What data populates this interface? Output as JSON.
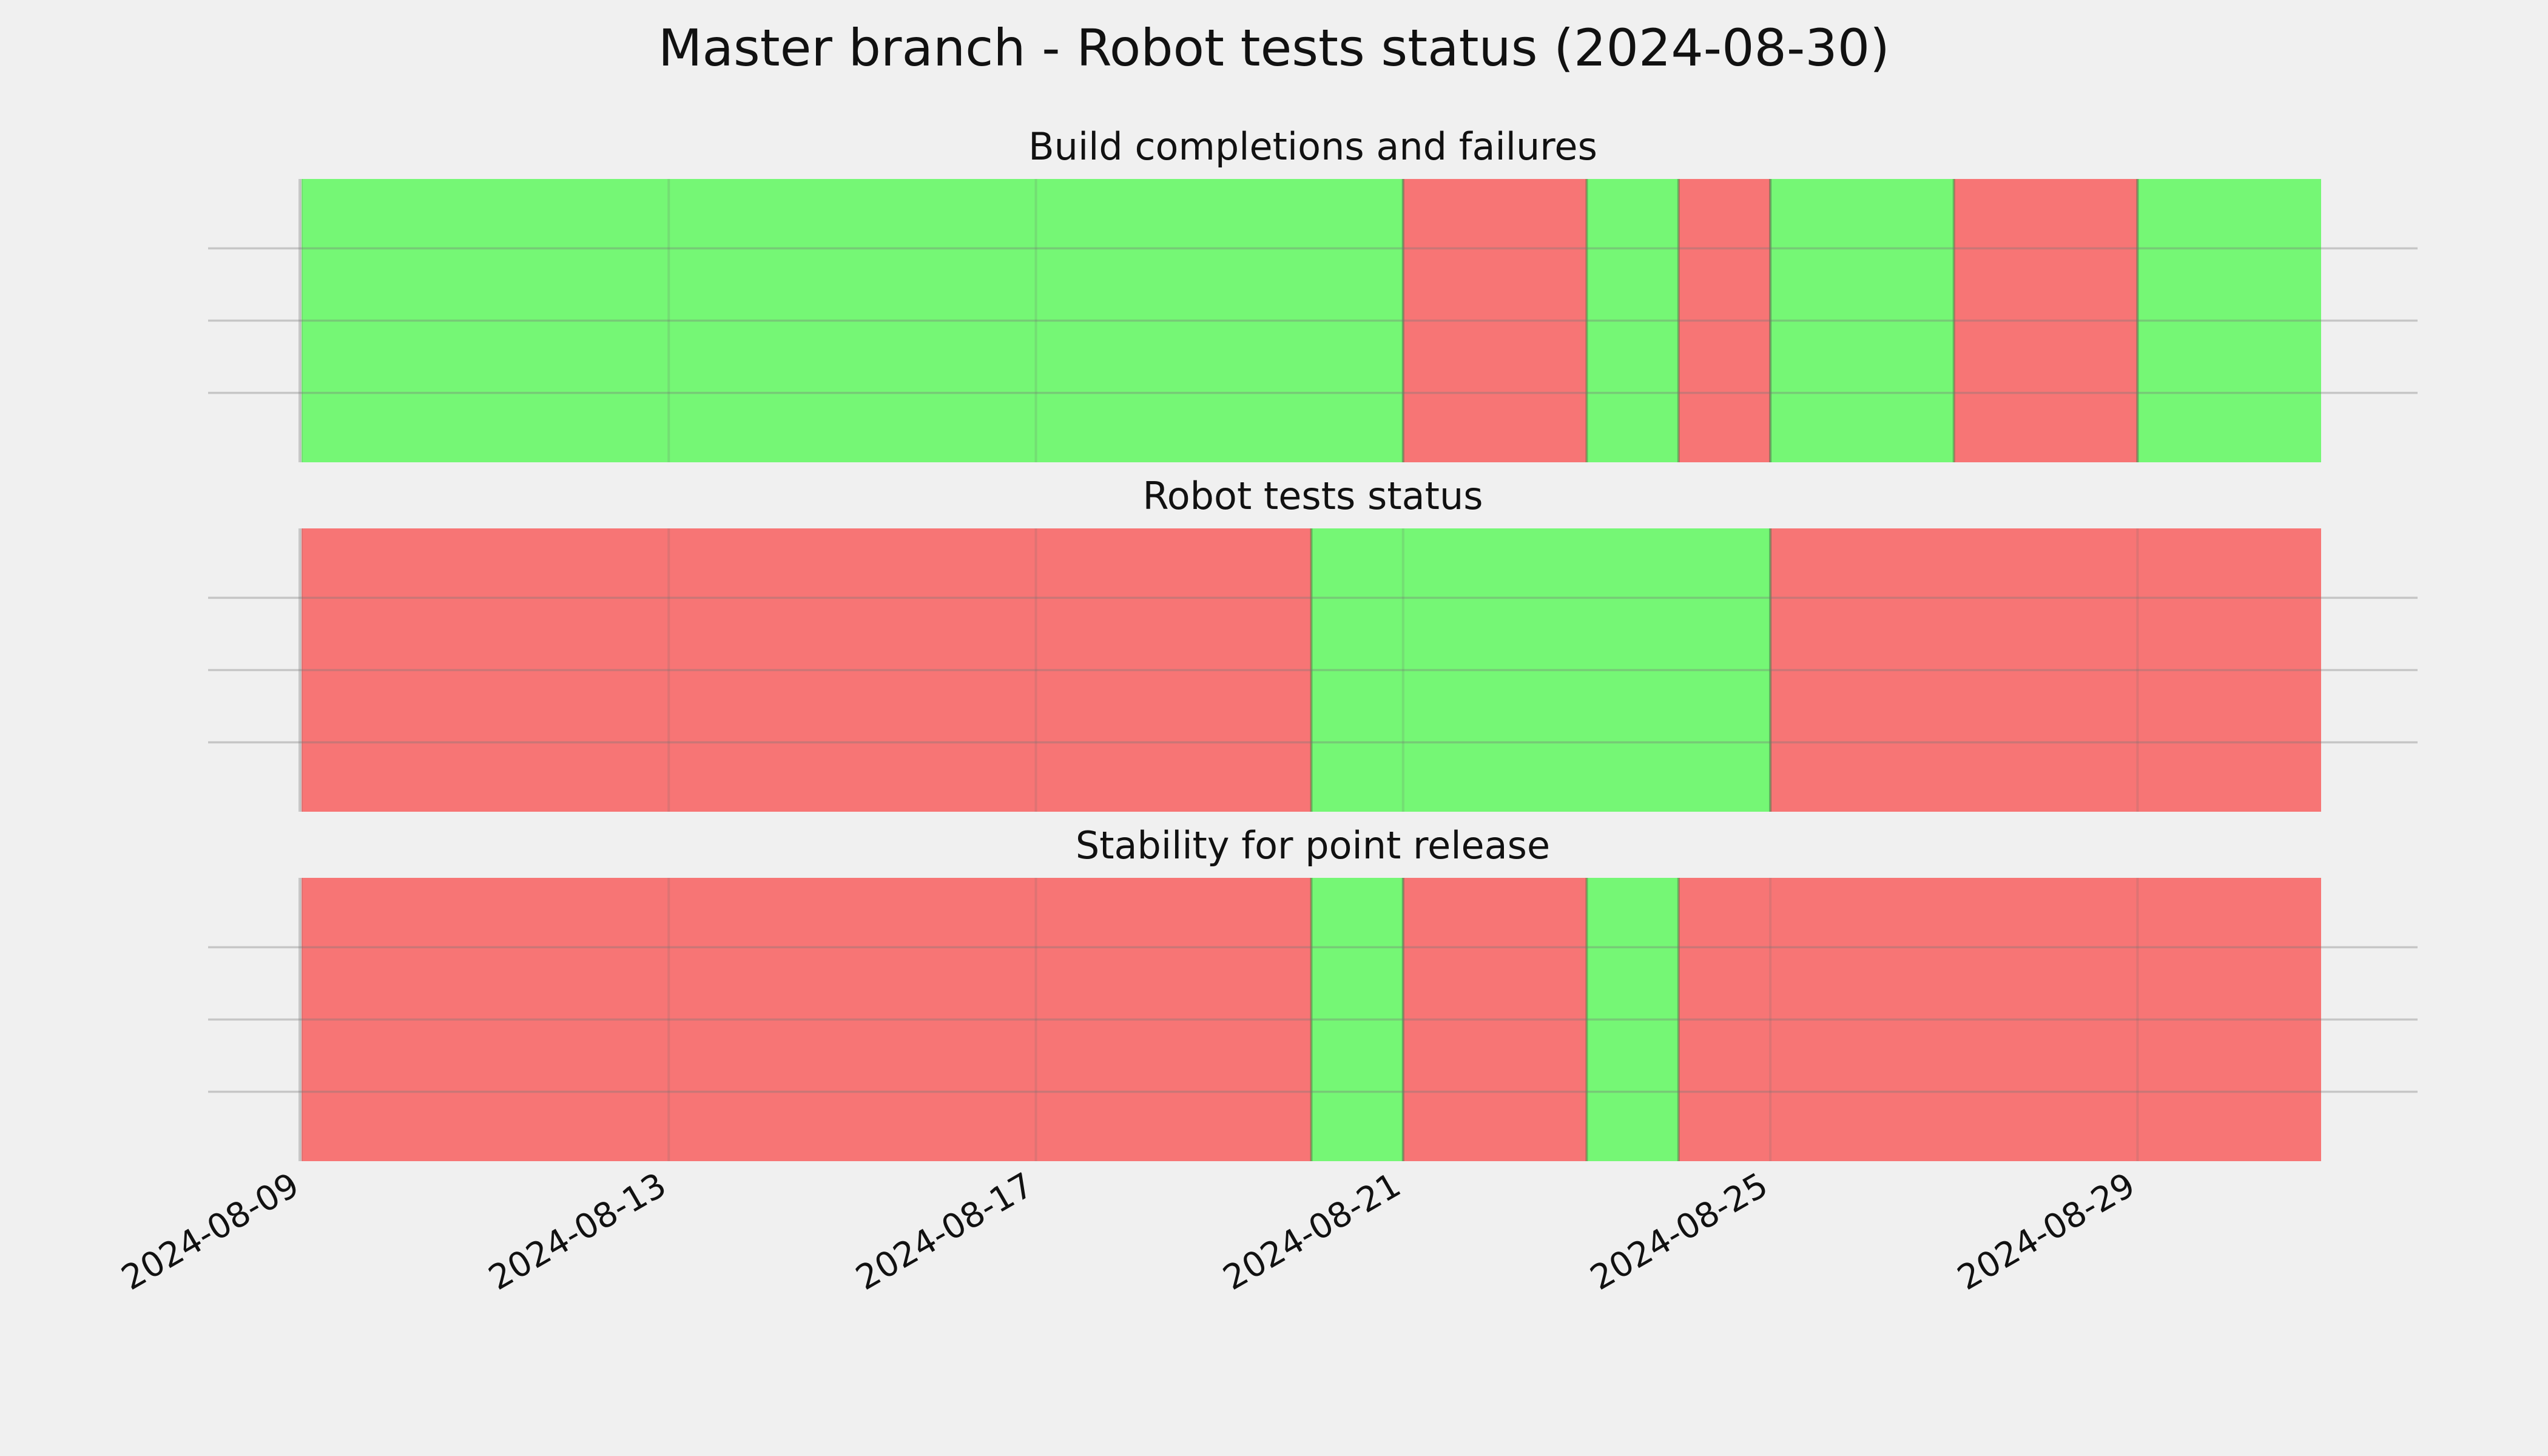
{
  "chart_data": {
    "type": "timeline",
    "title": "Master branch - Robot tests status (2024-08-30)",
    "x_axis": {
      "type": "date",
      "range": [
        "2024-08-09",
        "2024-08-31"
      ],
      "ticks": [
        "2024-08-09",
        "2024-08-13",
        "2024-08-17",
        "2024-08-21",
        "2024-08-25",
        "2024-08-29"
      ]
    },
    "colors": {
      "pass": "#75f775",
      "fail": "#f77575",
      "background": "#f0f0f0"
    },
    "grid": true,
    "panels": [
      {
        "title": "Build completions and failures",
        "segments": [
          {
            "start": "2024-08-09",
            "end": "2024-08-21",
            "status": "pass"
          },
          {
            "start": "2024-08-21",
            "end": "2024-08-23",
            "status": "fail"
          },
          {
            "start": "2024-08-23",
            "end": "2024-08-24",
            "status": "pass"
          },
          {
            "start": "2024-08-24",
            "end": "2024-08-25",
            "status": "fail"
          },
          {
            "start": "2024-08-25",
            "end": "2024-08-27",
            "status": "pass"
          },
          {
            "start": "2024-08-27",
            "end": "2024-08-29",
            "status": "fail"
          },
          {
            "start": "2024-08-29",
            "end": "2024-08-31",
            "status": "pass"
          }
        ]
      },
      {
        "title": "Robot tests status",
        "segments": [
          {
            "start": "2024-08-09",
            "end": "2024-08-20",
            "status": "fail"
          },
          {
            "start": "2024-08-20",
            "end": "2024-08-25",
            "status": "pass"
          },
          {
            "start": "2024-08-25",
            "end": "2024-08-31",
            "status": "fail"
          }
        ]
      },
      {
        "title": "Stability for point release",
        "segments": [
          {
            "start": "2024-08-09",
            "end": "2024-08-20",
            "status": "fail"
          },
          {
            "start": "2024-08-20",
            "end": "2024-08-21",
            "status": "pass"
          },
          {
            "start": "2024-08-21",
            "end": "2024-08-23",
            "status": "fail"
          },
          {
            "start": "2024-08-23",
            "end": "2024-08-24",
            "status": "pass"
          },
          {
            "start": "2024-08-24",
            "end": "2024-08-31",
            "status": "fail"
          }
        ]
      }
    ]
  }
}
